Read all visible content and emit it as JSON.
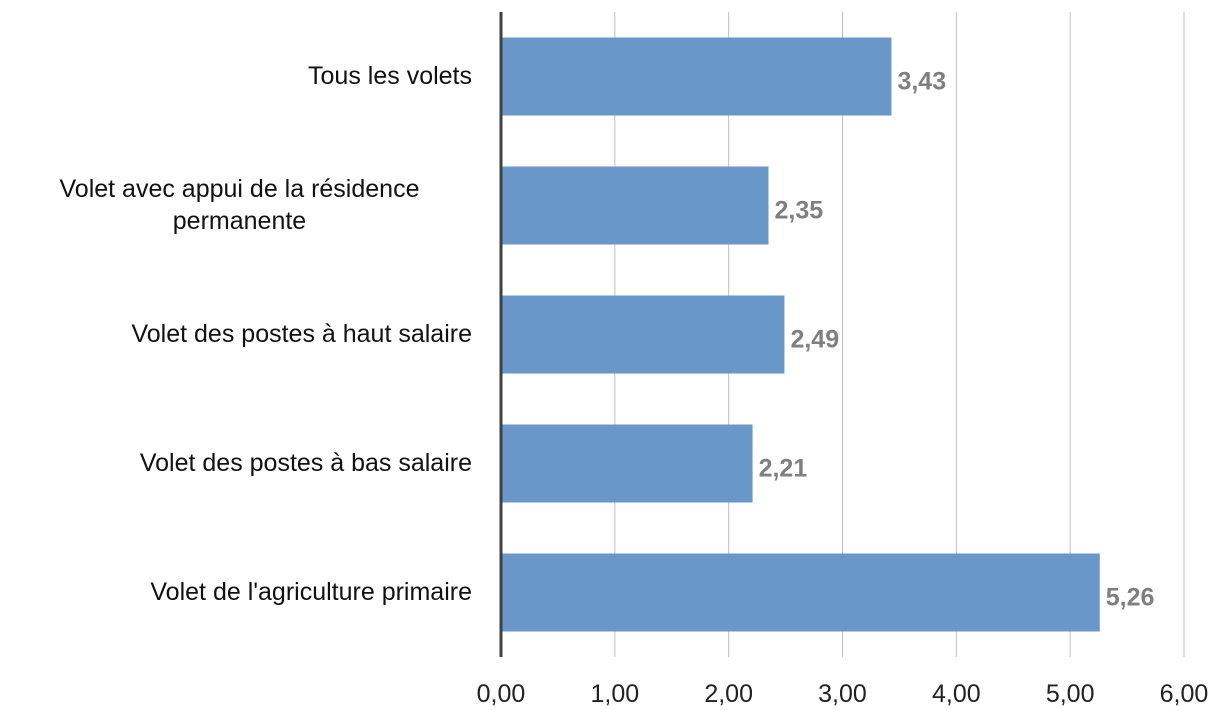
{
  "chart_data": {
    "type": "bar",
    "orientation": "horizontal",
    "categories": [
      "Tous les volets",
      "Volet avec appui de la résidence permanente",
      "Volet des postes à haut salaire",
      "Volet des postes à bas salaire",
      "Volet de l'agriculture primaire"
    ],
    "values": [
      3.43,
      2.35,
      2.49,
      2.21,
      5.26
    ],
    "value_labels": [
      "3,43",
      "2,35",
      "2,49",
      "2,21",
      "5,26"
    ],
    "color": "#6a97c9",
    "xlim": [
      0,
      6
    ],
    "xticks": [
      {
        "value": 0,
        "label": "0,00"
      },
      {
        "value": 1,
        "label": "1,00"
      },
      {
        "value": 2,
        "label": "2,00"
      },
      {
        "value": 3,
        "label": "3,00"
      },
      {
        "value": 4,
        "label": "4,00"
      },
      {
        "value": 5,
        "label": "5,00"
      },
      {
        "value": 6,
        "label": "6,00"
      }
    ],
    "grid": true
  }
}
